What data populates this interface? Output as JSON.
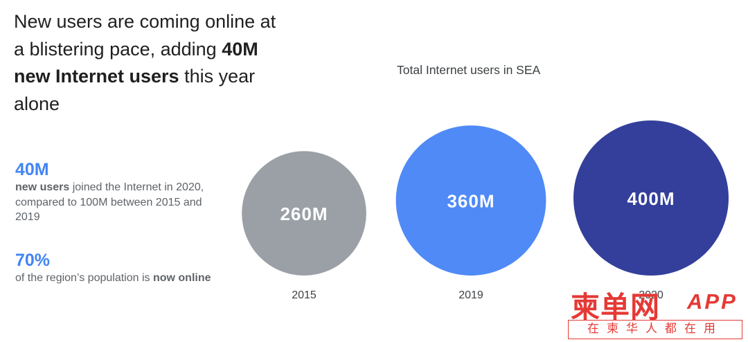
{
  "headline": {
    "part1": "New users are coming online at a blistering pace, adding ",
    "bold1": "40M new Internet users",
    "part2": " this year alone"
  },
  "stats": [
    {
      "value": "40M",
      "bold": "new users",
      "text": " joined the Internet in 2020, compared to 100M between 2015 and 2019"
    },
    {
      "value": "70%",
      "text": "of the region’s population is ",
      "bold": "now online"
    }
  ],
  "chart_data": {
    "type": "bubble",
    "title": "Total Internet users in SEA",
    "categories": [
      "2015",
      "2019",
      "2020"
    ],
    "values": [
      260,
      360,
      400
    ],
    "labels": [
      "260M",
      "360M",
      "400M"
    ],
    "unit": "M",
    "colors": [
      "#9aa0a6",
      "#4f8af6",
      "#333f9a"
    ]
  },
  "watermark": {
    "title": "柬单网",
    "app": "APP",
    "tagline": "在柬华人都在用"
  }
}
